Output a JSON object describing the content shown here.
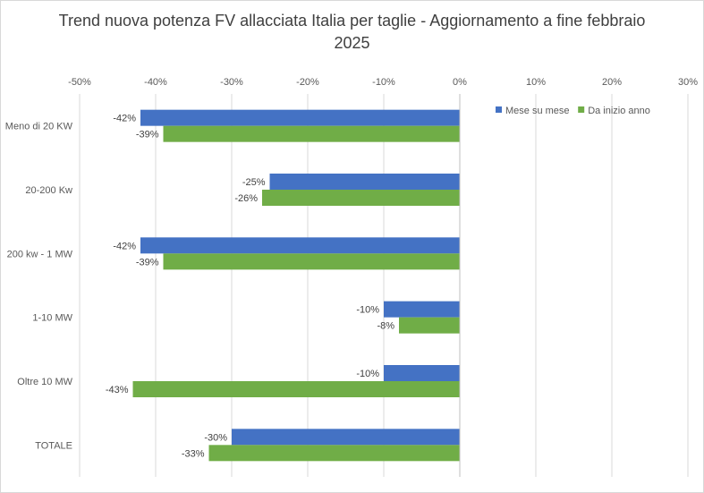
{
  "chart_data": {
    "type": "bar",
    "orientation": "horizontal",
    "title": "Trend nuova potenza FV allacciata Italia per taglie - Aggiornamento a fine febbraio\n2025",
    "categories": [
      "Meno di 20 KW",
      "20-200 Kw",
      "200 kw - 1 MW",
      "1-10 MW",
      "Oltre 10 MW",
      "TOTALE"
    ],
    "series": [
      {
        "name": "Mese su mese",
        "color": "#4472c4",
        "values": [
          -42,
          -25,
          -42,
          -10,
          -10,
          -30
        ]
      },
      {
        "name": "Da inizio anno",
        "color": "#70ad47",
        "values": [
          -39,
          -26,
          -39,
          -8,
          -43,
          -33
        ]
      }
    ],
    "data_labels": {
      "Mese su mese": [
        "-42%",
        "-25%",
        "-42%",
        "-10%",
        "-10%",
        "-30%"
      ],
      "Da inizio anno": [
        "-39%",
        "-26%",
        "-39%",
        "-8%",
        "-43%",
        "-33%"
      ]
    },
    "xlim": [
      -50,
      30
    ],
    "xticks": [
      "-50%",
      "-40%",
      "-30%",
      "-20%",
      "-10%",
      "0%",
      "10%",
      "20%",
      "30%"
    ],
    "xtick_values": [
      -50,
      -40,
      -30,
      -20,
      -10,
      0,
      10,
      20,
      30
    ],
    "axis_position": "top",
    "grid": true,
    "legend_position": "top-right",
    "xlabel": "",
    "ylabel": ""
  }
}
